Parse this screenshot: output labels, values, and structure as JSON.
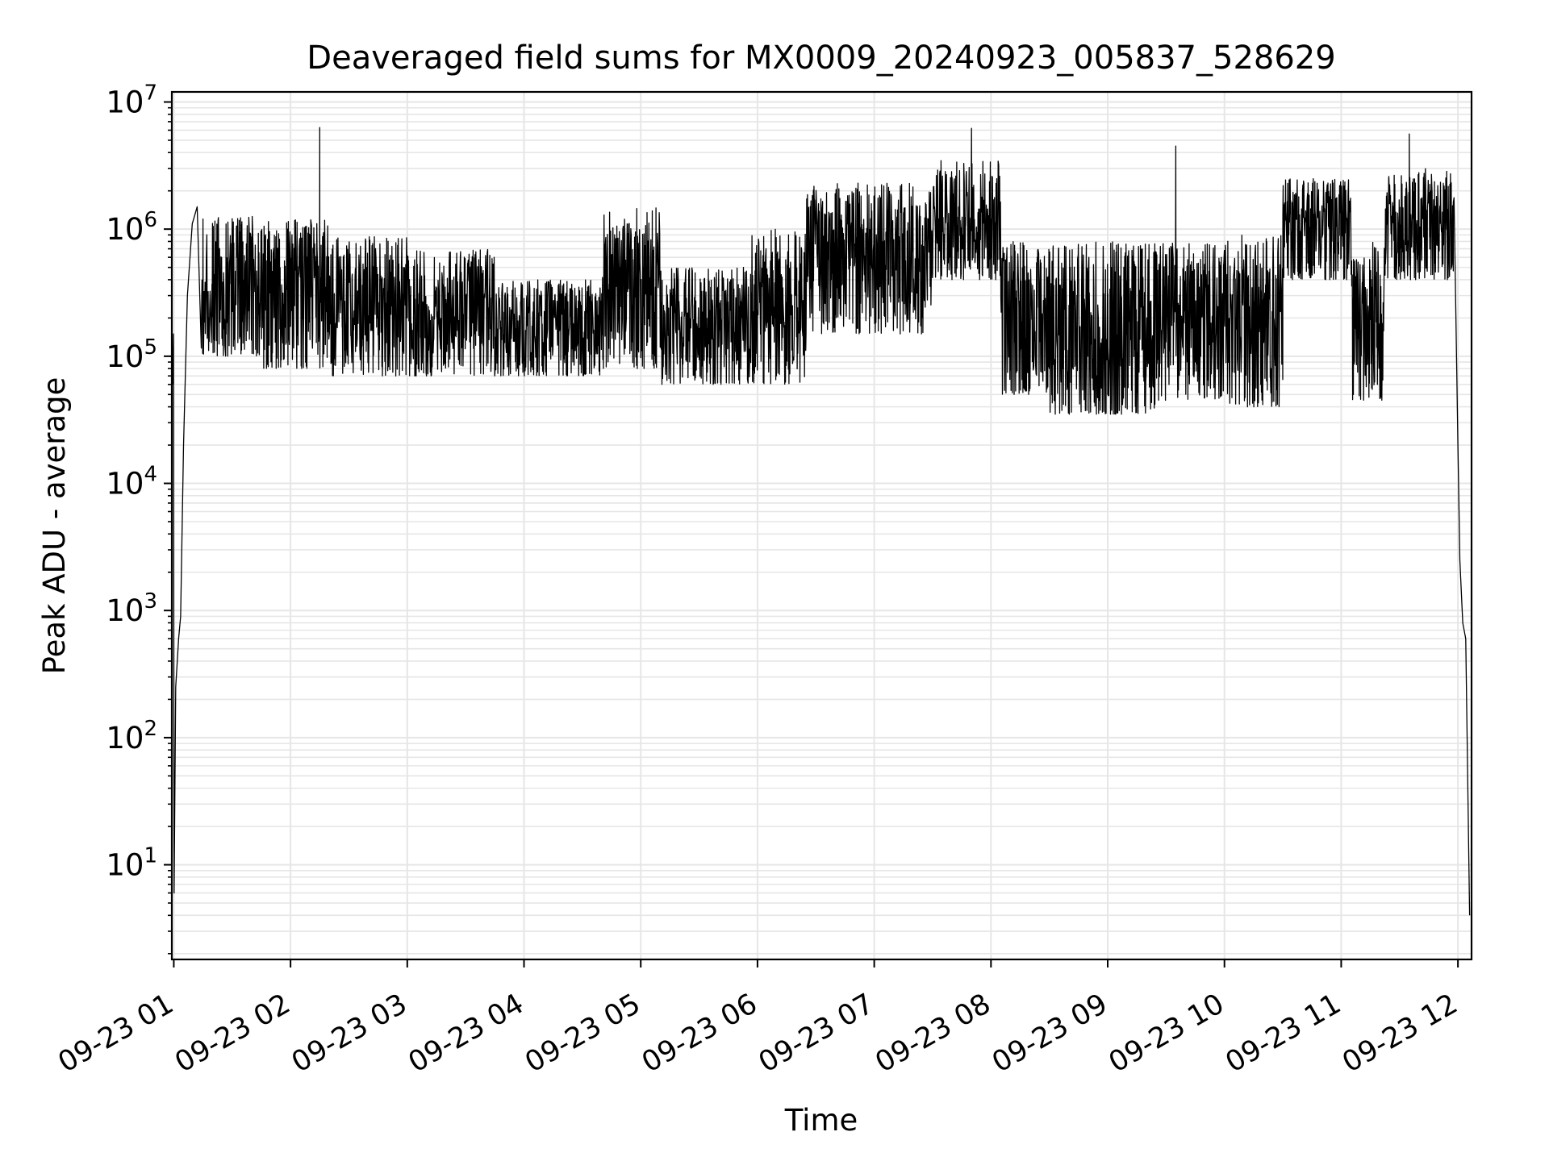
{
  "chart_data": {
    "type": "line",
    "title": "Deaveraged field sums for MX0009_20240923_005837_528629",
    "xlabel": "Time",
    "ylabel": "Peak ADU - average",
    "yscale": "log",
    "ylim": [
      1.8,
      12000000
    ],
    "xlim": [
      "2024-09-23 00:59",
      "2024-09-23 12:07"
    ],
    "grid": true,
    "line_color": "#000000",
    "grid_color": "#e6e6e6",
    "x_ticks": [
      {
        "value": "2024-09-23 01:00",
        "label": "09-23 01"
      },
      {
        "value": "2024-09-23 02:00",
        "label": "09-23 02"
      },
      {
        "value": "2024-09-23 03:00",
        "label": "09-23 03"
      },
      {
        "value": "2024-09-23 04:00",
        "label": "09-23 04"
      },
      {
        "value": "2024-09-23 05:00",
        "label": "09-23 05"
      },
      {
        "value": "2024-09-23 06:00",
        "label": "09-23 06"
      },
      {
        "value": "2024-09-23 07:00",
        "label": "09-23 07"
      },
      {
        "value": "2024-09-23 08:00",
        "label": "09-23 08"
      },
      {
        "value": "2024-09-23 09:00",
        "label": "09-23 09"
      },
      {
        "value": "2024-09-23 10:00",
        "label": "09-23 10"
      },
      {
        "value": "2024-09-23 11:00",
        "label": "09-23 11"
      },
      {
        "value": "2024-09-23 12:00",
        "label": "09-23 12"
      }
    ],
    "y_ticks": [
      {
        "value": 10,
        "base": "10",
        "exp": "1"
      },
      {
        "value": 100,
        "base": "10",
        "exp": "2"
      },
      {
        "value": 1000,
        "base": "10",
        "exp": "3"
      },
      {
        "value": 10000,
        "base": "10",
        "exp": "4"
      },
      {
        "value": 100000,
        "base": "10",
        "exp": "5"
      },
      {
        "value": 1000000,
        "base": "10",
        "exp": "6"
      },
      {
        "value": 10000000,
        "base": "10",
        "exp": "7"
      }
    ],
    "series_points": [
      {
        "x": "2024-09-23 00:59:20",
        "y": 60000
      },
      {
        "x": "2024-09-23 00:59:50",
        "y": 150000
      },
      {
        "x": "2024-09-23 01:00:10",
        "y": 6
      },
      {
        "x": "2024-09-23 01:01:00",
        "y": 250
      },
      {
        "x": "2024-09-23 01:02:30",
        "y": 600
      },
      {
        "x": "2024-09-23 01:03:30",
        "y": 900
      },
      {
        "x": "2024-09-23 01:05:00",
        "y": 20000
      },
      {
        "x": "2024-09-23 01:07:00",
        "y": 300000
      },
      {
        "x": "2024-09-23 01:09:30",
        "y": 1100000
      },
      {
        "x": "2024-09-23 01:12:00",
        "y": 1500000
      },
      {
        "x": "2024-09-23 01:15:00",
        "y": 1200000
      },
      {
        "x": "2024-09-23 02:00:00",
        "y": 600000
      },
      {
        "x": "2024-09-23 02:15:00",
        "y": 6300000
      },
      {
        "x": "2024-09-23 03:00:00",
        "y": 200000
      },
      {
        "x": "2024-09-23 04:00:00",
        "y": 150000
      },
      {
        "x": "2024-09-23 05:00:00",
        "y": 300000
      },
      {
        "x": "2024-09-23 05:30:00",
        "y": 120000
      },
      {
        "x": "2024-09-23 06:00:00",
        "y": 200000
      },
      {
        "x": "2024-09-23 06:35:00",
        "y": 1300000
      },
      {
        "x": "2024-09-23 07:00:00",
        "y": 500000
      },
      {
        "x": "2024-09-23 07:50:00",
        "y": 6200000
      },
      {
        "x": "2024-09-23 08:00:00",
        "y": 1200000
      },
      {
        "x": "2024-09-23 08:30:00",
        "y": 80000
      },
      {
        "x": "2024-09-23 09:00:00",
        "y": 50000
      },
      {
        "x": "2024-09-23 09:35:00",
        "y": 4500000
      },
      {
        "x": "2024-09-23 10:00:00",
        "y": 200000
      },
      {
        "x": "2024-09-23 10:30:00",
        "y": 1300000
      },
      {
        "x": "2024-09-23 11:00:00",
        "y": 600000
      },
      {
        "x": "2024-09-23 11:10:00",
        "y": 80000
      },
      {
        "x": "2024-09-23 11:35:00",
        "y": 5600000
      },
      {
        "x": "2024-09-23 11:55:00",
        "y": 1000000
      },
      {
        "x": "2024-09-23 12:00:00",
        "y": 20000
      },
      {
        "x": "2024-09-23 12:01:00",
        "y": 2500
      },
      {
        "x": "2024-09-23 12:02:30",
        "y": 800
      },
      {
        "x": "2024-09-23 12:04:00",
        "y": 600
      },
      {
        "x": "2024-09-23 12:06:00",
        "y": 4
      }
    ],
    "envelope": [
      {
        "start": "2024-09-23 01:14",
        "end": "2024-09-23 01:45",
        "low": 100000,
        "high": 1300000
      },
      {
        "start": "2024-09-23 01:45",
        "end": "2024-09-23 02:20",
        "low": 80000,
        "high": 1200000
      },
      {
        "start": "2024-09-23 02:20",
        "end": "2024-09-23 03:00",
        "low": 70000,
        "high": 900000
      },
      {
        "start": "2024-09-23 03:00",
        "end": "2024-09-23 03:45",
        "low": 70000,
        "high": 700000
      },
      {
        "start": "2024-09-23 03:45",
        "end": "2024-09-23 04:40",
        "low": 70000,
        "high": 400000
      },
      {
        "start": "2024-09-23 04:40",
        "end": "2024-09-23 05:10",
        "low": 80000,
        "high": 1500000
      },
      {
        "start": "2024-09-23 05:10",
        "end": "2024-09-23 05:55",
        "low": 60000,
        "high": 500000
      },
      {
        "start": "2024-09-23 05:55",
        "end": "2024-09-23 06:25",
        "low": 60000,
        "high": 1000000
      },
      {
        "start": "2024-09-23 06:25",
        "end": "2024-09-23 07:30",
        "low": 150000,
        "high": 2300000
      },
      {
        "start": "2024-09-23 07:30",
        "end": "2024-09-23 08:05",
        "low": 400000,
        "high": 3500000
      },
      {
        "start": "2024-09-23 08:05",
        "end": "2024-09-23 08:30",
        "low": 50000,
        "high": 800000
      },
      {
        "start": "2024-09-23 08:30",
        "end": "2024-09-23 09:25",
        "low": 35000,
        "high": 800000
      },
      {
        "start": "2024-09-23 09:25",
        "end": "2024-09-23 10:00",
        "low": 45000,
        "high": 800000
      },
      {
        "start": "2024-09-23 10:00",
        "end": "2024-09-23 10:30",
        "low": 40000,
        "high": 900000
      },
      {
        "start": "2024-09-23 10:30",
        "end": "2024-09-23 11:05",
        "low": 400000,
        "high": 2500000
      },
      {
        "start": "2024-09-23 11:05",
        "end": "2024-09-23 11:22",
        "low": 45000,
        "high": 800000
      },
      {
        "start": "2024-09-23 11:22",
        "end": "2024-09-23 11:58",
        "low": 400000,
        "high": 3000000
      }
    ]
  }
}
